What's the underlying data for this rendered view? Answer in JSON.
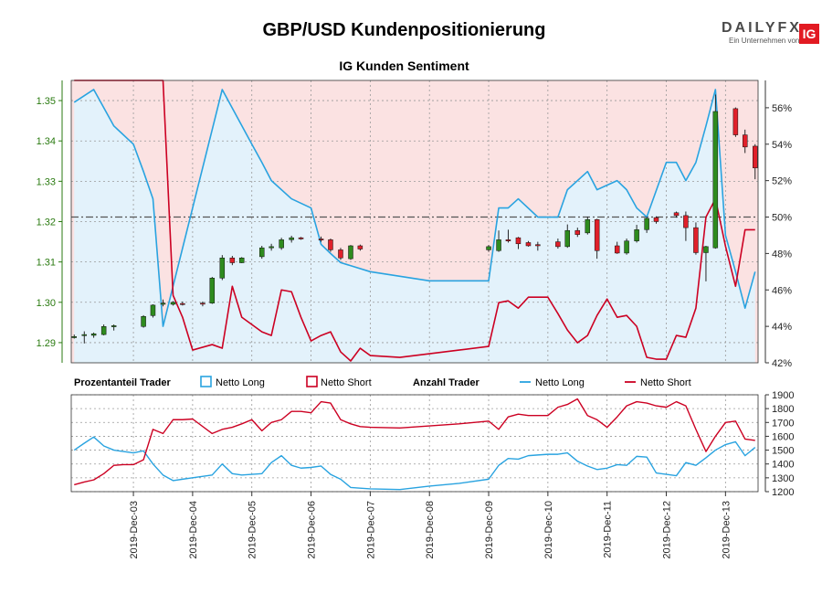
{
  "header": {
    "title": "GBP/USD Kundenpositionierung",
    "subtitle": "IG Kunden Sentiment"
  },
  "logo": {
    "brand": "DAILYFX",
    "tagline": "Ein Unternehmen von",
    "mark": "IG"
  },
  "legend": {
    "group1_title": "Prozentanteil Trader",
    "group1_long": "Netto Long",
    "group1_short": "Netto Short",
    "group2_title": "Anzahl Trader",
    "group2_long": "Netto Long",
    "group2_short": "Netto Short"
  },
  "colors": {
    "long": "#29a3e0",
    "short": "#cc0022",
    "long_fill": "#e3f2fb",
    "short_fill": "#fbe2e2",
    "candle_up": "#2e8b1e",
    "candle_down": "#e0202a",
    "grid": "#999999",
    "left_axis": "#2a7a10"
  },
  "chart_data": [
    {
      "type": "candlestick",
      "name": "price",
      "y_axis_left": [
        1.29,
        1.3,
        1.31,
        1.32,
        1.33,
        1.34,
        1.35
      ],
      "y_tick_labels_left": [
        "1.29",
        "1.30",
        "1.31",
        "1.32",
        "1.33",
        "1.34",
        "1.35"
      ],
      "ylim": [
        1.285,
        1.355
      ],
      "candles": [
        [
          2.0,
          1.2915,
          1.292,
          1.291,
          1.2915
        ],
        [
          2.17,
          1.292,
          1.2928,
          1.2898,
          1.292
        ],
        [
          2.33,
          1.2918,
          1.2925,
          1.2912,
          1.2922
        ],
        [
          2.5,
          1.292,
          1.2945,
          1.2918,
          1.294
        ],
        [
          2.67,
          1.294,
          1.2945,
          1.293,
          1.2942
        ],
        [
          3.17,
          1.294,
          1.2968,
          1.2937,
          1.2965
        ],
        [
          3.33,
          1.2967,
          1.2995,
          1.2962,
          1.2993
        ],
        [
          3.5,
          1.2995,
          1.3007,
          1.299,
          1.2998
        ],
        [
          3.67,
          1.2995,
          1.3003,
          1.2992,
          1.3
        ],
        [
          3.83,
          1.2997,
          1.3002,
          1.2992,
          1.2996
        ],
        [
          4.17,
          1.2998,
          1.3002,
          1.299,
          1.2996
        ],
        [
          4.33,
          1.2998,
          1.3063,
          1.2996,
          1.306
        ],
        [
          4.5,
          1.306,
          1.3117,
          1.3055,
          1.311
        ],
        [
          4.67,
          1.311,
          1.3115,
          1.3092,
          1.3098
        ],
        [
          4.83,
          1.3098,
          1.3112,
          1.3097,
          1.311
        ],
        [
          5.17,
          1.3113,
          1.314,
          1.3108,
          1.3135
        ],
        [
          5.33,
          1.3135,
          1.3145,
          1.3128,
          1.3138
        ],
        [
          5.5,
          1.3135,
          1.316,
          1.313,
          1.3155
        ],
        [
          5.67,
          1.3155,
          1.3165,
          1.3148,
          1.316
        ],
        [
          5.83,
          1.316,
          1.3162,
          1.3155,
          1.3157
        ],
        [
          6.17,
          1.3157,
          1.3163,
          1.315,
          1.3155
        ],
        [
          6.33,
          1.3155,
          1.3158,
          1.3125,
          1.313
        ],
        [
          6.5,
          1.313,
          1.3135,
          1.3105,
          1.311
        ],
        [
          6.67,
          1.3108,
          1.3142,
          1.3105,
          1.314
        ],
        [
          6.83,
          1.314,
          1.3143,
          1.3128,
          1.3132
        ],
        [
          9.0,
          1.313,
          1.3142,
          1.3125,
          1.3138
        ],
        [
          9.17,
          1.3128,
          1.3178,
          1.3125,
          1.3155
        ],
        [
          9.33,
          1.3155,
          1.318,
          1.3148,
          1.3152
        ],
        [
          9.5,
          1.316,
          1.3162,
          1.3132,
          1.3145
        ],
        [
          9.67,
          1.3148,
          1.3152,
          1.3138,
          1.314
        ],
        [
          9.83,
          1.3143,
          1.315,
          1.3128,
          1.314
        ],
        [
          10.17,
          1.315,
          1.3158,
          1.3133,
          1.3138
        ],
        [
          10.33,
          1.3138,
          1.3193,
          1.3135,
          1.3178
        ],
        [
          10.5,
          1.3178,
          1.3185,
          1.3162,
          1.3168
        ],
        [
          10.67,
          1.3172,
          1.3212,
          1.3168,
          1.3205
        ],
        [
          10.83,
          1.3205,
          1.3207,
          1.3108,
          1.3128
        ],
        [
          11.17,
          1.314,
          1.315,
          1.312,
          1.3122
        ],
        [
          11.33,
          1.3122,
          1.3158,
          1.3118,
          1.3152
        ],
        [
          11.5,
          1.3152,
          1.3192,
          1.3148,
          1.318
        ],
        [
          11.67,
          1.318,
          1.3212,
          1.3172,
          1.3208
        ],
        [
          11.83,
          1.321,
          1.3213,
          1.3195,
          1.32
        ],
        [
          12.17,
          1.3222,
          1.3225,
          1.321,
          1.3215
        ],
        [
          12.33,
          1.3215,
          1.3225,
          1.3152,
          1.3185
        ],
        [
          12.5,
          1.3185,
          1.3198,
          1.3118,
          1.3123
        ],
        [
          12.67,
          1.3123,
          1.314,
          1.3052,
          1.3138
        ],
        [
          12.83,
          1.3135,
          1.3515,
          1.3133,
          1.3473
        ],
        [
          13.17,
          1.348,
          1.3483,
          1.341,
          1.3415
        ],
        [
          13.33,
          1.3415,
          1.3428,
          1.337,
          1.3385
        ],
        [
          13.5,
          1.3387,
          1.3392,
          1.3305,
          1.3333
        ]
      ],
      "y_axis_right": [
        42,
        44,
        46,
        48,
        50,
        52,
        54,
        56
      ],
      "y_tick_labels_right": [
        "42%",
        "44%",
        "46%",
        "48%",
        "50%",
        "52%",
        "54%",
        "56%"
      ],
      "ylim_right": [
        42,
        57.5
      ],
      "reference_line_right": 50,
      "series": [
        {
          "name": "Netto Long",
          "x": [
            2.0,
            2.33,
            2.67,
            3.0,
            3.17,
            3.33,
            3.5,
            4.5,
            5.0,
            5.17,
            5.33,
            5.67,
            6.0,
            6.17,
            6.33,
            6.5,
            7.0,
            8.0,
            9.0,
            9.17,
            9.33,
            9.5,
            9.83,
            10.17,
            10.33,
            10.67,
            10.83,
            11.17,
            11.33,
            11.5,
            11.67,
            12.0,
            12.17,
            12.33,
            12.5,
            12.67,
            12.83,
            13.0,
            13.17,
            13.33,
            13.5
          ],
          "values": [
            56.3,
            57.0,
            55.0,
            54.0,
            52.5,
            51.0,
            44.0,
            57.0,
            54.0,
            53.0,
            52.0,
            51.0,
            50.5,
            48.5,
            48.0,
            47.5,
            47.0,
            46.5,
            46.5,
            50.5,
            50.5,
            51.0,
            50.0,
            50.0,
            51.5,
            52.5,
            51.5,
            52.0,
            51.5,
            50.5,
            50.0,
            53.0,
            53.0,
            52.0,
            53.0,
            55.0,
            57.0,
            49.0,
            47.0,
            45.0,
            47.0
          ]
        },
        {
          "name": "Netto Short",
          "x": [
            2.0,
            3.5,
            3.67,
            3.83,
            4.0,
            4.33,
            4.5,
            4.67,
            4.83,
            5.0,
            5.17,
            5.33,
            5.5,
            5.67,
            5.83,
            6.0,
            6.17,
            6.33,
            6.5,
            6.67,
            6.83,
            7.0,
            7.5,
            8.0,
            8.5,
            9.0,
            9.17,
            9.33,
            9.5,
            9.67,
            9.83,
            10.0,
            10.17,
            10.33,
            10.5,
            10.67,
            10.83,
            11.0,
            11.17,
            11.33,
            11.5,
            11.67,
            11.83,
            12.0,
            12.17,
            12.33,
            12.5,
            12.67,
            12.83,
            13.0,
            13.17,
            13.33,
            13.5
          ],
          "values": [
            57.5,
            57.5,
            45.7,
            44.5,
            42.7,
            43.0,
            42.8,
            46.2,
            44.5,
            44.1,
            43.7,
            43.5,
            46.0,
            45.9,
            44.5,
            43.2,
            43.5,
            43.7,
            42.6,
            42.1,
            42.8,
            42.4,
            42.3,
            42.5,
            42.7,
            42.9,
            45.3,
            45.4,
            45.0,
            45.6,
            45.6,
            45.6,
            44.7,
            43.8,
            43.1,
            43.5,
            44.6,
            45.5,
            44.5,
            44.6,
            44.0,
            42.3,
            42.2,
            42.2,
            43.5,
            43.4,
            45.0,
            50.0,
            51.0,
            48.4,
            46.2,
            49.3,
            49.3
          ]
        }
      ]
    },
    {
      "type": "line",
      "name": "trader-count",
      "y_axis_right": [
        1200,
        1300,
        1400,
        1500,
        1600,
        1700,
        1800,
        1900
      ],
      "y_tick_labels_right": [
        "1200",
        "1300",
        "1400",
        "1500",
        "1600",
        "1700",
        "1800",
        "1900"
      ],
      "ylim": [
        1200,
        1900
      ],
      "series": [
        {
          "name": "Netto Long",
          "x": [
            2.0,
            2.17,
            2.33,
            2.5,
            2.67,
            2.83,
            3.0,
            3.17,
            3.33,
            3.5,
            3.67,
            3.83,
            4.0,
            4.33,
            4.5,
            4.67,
            4.83,
            5.0,
            5.17,
            5.33,
            5.5,
            5.67,
            5.83,
            6.0,
            6.17,
            6.33,
            6.5,
            6.67,
            6.83,
            7.0,
            7.5,
            8.0,
            8.5,
            9.0,
            9.17,
            9.33,
            9.5,
            9.67,
            9.83,
            10.0,
            10.17,
            10.33,
            10.5,
            10.67,
            10.83,
            11.0,
            11.17,
            11.33,
            11.5,
            11.67,
            11.83,
            12.0,
            12.17,
            12.33,
            12.5,
            12.67,
            12.83,
            13.0,
            13.17,
            13.33,
            13.5
          ],
          "values": [
            1500,
            1550,
            1595,
            1530,
            1500,
            1490,
            1480,
            1495,
            1400,
            1320,
            1280,
            1290,
            1300,
            1320,
            1400,
            1330,
            1320,
            1325,
            1330,
            1410,
            1460,
            1390,
            1370,
            1375,
            1385,
            1325,
            1290,
            1230,
            1225,
            1220,
            1215,
            1240,
            1260,
            1290,
            1390,
            1440,
            1435,
            1460,
            1465,
            1470,
            1470,
            1480,
            1420,
            1385,
            1360,
            1370,
            1395,
            1390,
            1455,
            1450,
            1335,
            1325,
            1315,
            1410,
            1390,
            1445,
            1500,
            1540,
            1560,
            1460,
            1520
          ]
        },
        {
          "name": "Netto Short",
          "x": [
            2.0,
            2.17,
            2.33,
            2.5,
            2.67,
            2.83,
            3.0,
            3.17,
            3.33,
            3.5,
            3.67,
            3.83,
            4.0,
            4.33,
            4.5,
            4.67,
            4.83,
            5.0,
            5.17,
            5.33,
            5.5,
            5.67,
            5.83,
            6.0,
            6.17,
            6.33,
            6.5,
            6.67,
            6.83,
            7.0,
            7.5,
            8.0,
            8.5,
            9.0,
            9.17,
            9.33,
            9.5,
            9.67,
            9.83,
            10.0,
            10.17,
            10.33,
            10.5,
            10.67,
            10.83,
            11.0,
            11.17,
            11.33,
            11.5,
            11.67,
            11.83,
            12.0,
            12.17,
            12.33,
            12.5,
            12.67,
            12.83,
            13.0,
            13.17,
            13.33,
            13.5
          ],
          "values": [
            1250,
            1270,
            1285,
            1330,
            1390,
            1395,
            1395,
            1430,
            1650,
            1620,
            1720,
            1720,
            1725,
            1620,
            1650,
            1665,
            1690,
            1720,
            1640,
            1700,
            1720,
            1780,
            1780,
            1770,
            1850,
            1840,
            1720,
            1690,
            1670,
            1665,
            1660,
            1675,
            1690,
            1710,
            1650,
            1740,
            1760,
            1750,
            1750,
            1750,
            1810,
            1830,
            1870,
            1750,
            1720,
            1665,
            1740,
            1820,
            1850,
            1840,
            1820,
            1810,
            1850,
            1820,
            1650,
            1490,
            1600,
            1700,
            1710,
            1580,
            1570
          ]
        }
      ]
    }
  ],
  "x_axis": {
    "min": 1.95,
    "max": 13.55,
    "ticks": [
      3,
      4,
      5,
      6,
      7,
      8,
      9,
      10,
      11,
      12,
      13
    ],
    "tick_labels": [
      "2019-Dec-03",
      "2019-Dec-04",
      "2019-Dec-05",
      "2019-Dec-06",
      "2019-Dec-07",
      "2019-Dec-08",
      "2019-Dec-09",
      "2019-Dec-10",
      "2019-Dec-11",
      "2019-Dec-12",
      "2019-Dec-13"
    ]
  }
}
